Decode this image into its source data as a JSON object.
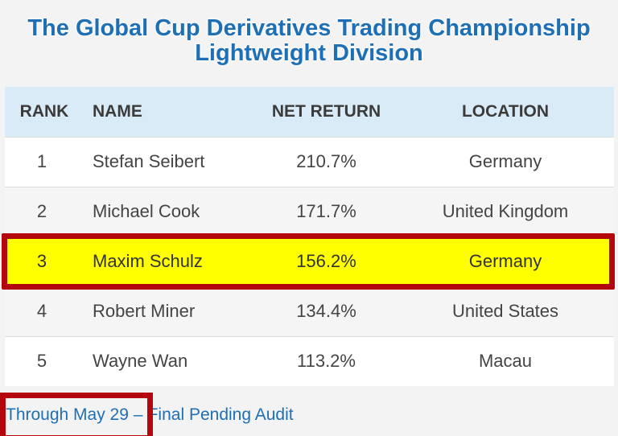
{
  "title": {
    "line1": "The Global Cup Derivatives Trading Championship",
    "line2": "Lightweight Division"
  },
  "table": {
    "headers": {
      "rank": "RANK",
      "name": "NAME",
      "net_return": "NET RETURN",
      "location": "LOCATION"
    },
    "rows": [
      {
        "rank": "1",
        "name": "Stefan Seibert",
        "net_return": "210.7%",
        "location": "Germany"
      },
      {
        "rank": "2",
        "name": "Michael Cook",
        "net_return": "171.7%",
        "location": "United Kingdom"
      },
      {
        "rank": "3",
        "name": "Maxim Schulz",
        "net_return": "156.2%",
        "location": "Germany"
      },
      {
        "rank": "4",
        "name": "Robert Miner",
        "net_return": "134.4%",
        "location": "United States"
      },
      {
        "rank": "5",
        "name": "Wayne Wan",
        "net_return": "113.2%",
        "location": "Macau"
      }
    ],
    "highlighted_rank": "3"
  },
  "footer": {
    "date_text": "Through May 29",
    "separator": "–",
    "status_text": "Final Pending Audit"
  },
  "colors": {
    "title_blue": "#1f6fb5",
    "header_bg": "#d9ebf7",
    "highlight_yellow": "#ffff00",
    "annotation_red": "#b3060d"
  }
}
